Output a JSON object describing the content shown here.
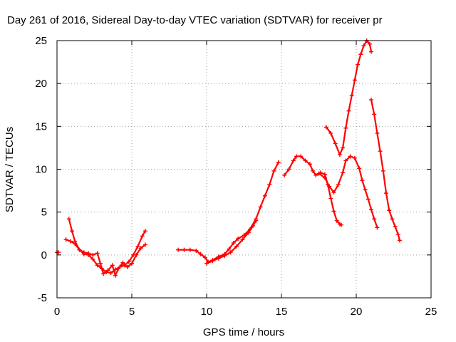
{
  "chart_data": {
    "type": "scatter",
    "title": "Day 261 of 2016, Sidereal Day-to-day VTEC variation (SDTVAR) for receiver pr",
    "xlabel": "GPS time / hours",
    "ylabel": "SDTVAR / TECUs",
    "xlim": [
      0,
      25
    ],
    "ylim": [
      -5,
      25
    ],
    "xticks": [
      0,
      5,
      10,
      15,
      20,
      25
    ],
    "yticks": [
      -5,
      0,
      5,
      10,
      15,
      20,
      25
    ],
    "grid": true,
    "marker": "plus",
    "color": "#ff0000",
    "series": [
      {
        "segments": [
          [
            [
              0.0,
              0.3
            ],
            [
              0.1,
              0.3
            ]
          ],
          [
            [
              0.8,
              4.2
            ],
            [
              1.0,
              2.8
            ],
            [
              1.2,
              1.6
            ],
            [
              1.5,
              0.6
            ],
            [
              1.8,
              0.1
            ],
            [
              2.1,
              0.0
            ],
            [
              2.4,
              -0.5
            ],
            [
              2.7,
              -1.2
            ],
            [
              3.0,
              -1.6
            ],
            [
              3.3,
              -2.0
            ],
            [
              3.6,
              -2.1
            ],
            [
              3.9,
              -1.7
            ],
            [
              4.2,
              -1.4
            ],
            [
              4.5,
              -1.2
            ],
            [
              4.8,
              -0.8
            ],
            [
              5.1,
              0.0
            ],
            [
              5.4,
              1.0
            ],
            [
              5.7,
              2.2
            ],
            [
              5.9,
              2.8
            ]
          ],
          [
            [
              0.6,
              1.8
            ],
            [
              0.9,
              1.6
            ],
            [
              1.2,
              1.3
            ],
            [
              1.5,
              0.6
            ],
            [
              1.8,
              0.3
            ],
            [
              2.1,
              0.2
            ],
            [
              2.4,
              0.0
            ],
            [
              2.7,
              0.2
            ],
            [
              2.9,
              -1.0
            ],
            [
              3.1,
              -2.2
            ],
            [
              3.4,
              -1.8
            ],
            [
              3.7,
              -1.2
            ],
            [
              3.9,
              -2.4
            ],
            [
              4.1,
              -1.6
            ],
            [
              4.4,
              -0.9
            ],
            [
              4.7,
              -1.4
            ],
            [
              5.0,
              -1.0
            ],
            [
              5.3,
              0.0
            ],
            [
              5.6,
              0.8
            ],
            [
              5.9,
              1.2
            ]
          ],
          [
            [
              8.1,
              0.6
            ],
            [
              8.5,
              0.6
            ],
            [
              8.9,
              0.6
            ],
            [
              9.3,
              0.5
            ],
            [
              9.6,
              0.1
            ],
            [
              9.9,
              -0.3
            ],
            [
              10.1,
              -0.8
            ],
            [
              10.4,
              -0.6
            ],
            [
              10.8,
              -0.2
            ],
            [
              11.2,
              0.1
            ],
            [
              11.5,
              0.7
            ],
            [
              11.8,
              1.4
            ],
            [
              12.1,
              1.9
            ],
            [
              12.5,
              2.3
            ],
            [
              12.9,
              3.0
            ],
            [
              13.3,
              4.2
            ],
            [
              13.6,
              5.6
            ],
            [
              13.9,
              6.9
            ],
            [
              14.2,
              8.2
            ],
            [
              14.5,
              9.8
            ],
            [
              14.8,
              10.8
            ]
          ],
          [
            [
              10.0,
              -1.0
            ],
            [
              10.4,
              -0.7
            ],
            [
              10.8,
              -0.4
            ],
            [
              11.2,
              -0.1
            ],
            [
              11.6,
              0.3
            ],
            [
              12.0,
              1.0
            ],
            [
              12.4,
              1.8
            ],
            [
              12.8,
              2.6
            ],
            [
              13.1,
              3.4
            ],
            [
              13.3,
              4.0
            ]
          ],
          [
            [
              15.2,
              9.3
            ],
            [
              15.5,
              10.0
            ],
            [
              15.8,
              11.0
            ],
            [
              16.0,
              11.5
            ],
            [
              16.3,
              11.5
            ],
            [
              16.6,
              11.0
            ],
            [
              16.9,
              10.6
            ],
            [
              17.1,
              9.8
            ],
            [
              17.3,
              9.3
            ],
            [
              17.6,
              9.6
            ],
            [
              17.9,
              9.4
            ],
            [
              18.1,
              8.2
            ],
            [
              18.3,
              6.6
            ],
            [
              18.5,
              5.1
            ],
            [
              18.7,
              4.0
            ],
            [
              18.9,
              3.6
            ],
            [
              19.0,
              3.5
            ]
          ],
          [
            [
              17.5,
              9.5
            ],
            [
              17.9,
              9.0
            ],
            [
              18.2,
              8.0
            ],
            [
              18.5,
              7.3
            ],
            [
              18.8,
              8.2
            ],
            [
              19.1,
              9.6
            ],
            [
              19.3,
              11.0
            ],
            [
              19.6,
              11.5
            ],
            [
              19.9,
              11.3
            ],
            [
              20.2,
              10.1
            ],
            [
              20.4,
              8.7
            ],
            [
              20.6,
              7.6
            ],
            [
              20.8,
              6.5
            ],
            [
              21.0,
              5.3
            ],
            [
              21.2,
              4.2
            ],
            [
              21.4,
              3.2
            ]
          ],
          [
            [
              18.0,
              14.9
            ],
            [
              18.3,
              14.2
            ],
            [
              18.6,
              13.0
            ],
            [
              18.9,
              11.7
            ],
            [
              19.1,
              12.5
            ],
            [
              19.3,
              14.8
            ],
            [
              19.5,
              16.8
            ],
            [
              19.7,
              18.6
            ],
            [
              19.9,
              20.4
            ],
            [
              20.1,
              22.2
            ],
            [
              20.3,
              23.4
            ],
            [
              20.5,
              24.4
            ],
            [
              20.7,
              25.0
            ],
            [
              20.9,
              24.6
            ],
            [
              21.0,
              23.7
            ]
          ],
          [
            [
              21.0,
              18.1
            ],
            [
              21.2,
              16.4
            ],
            [
              21.4,
              14.2
            ],
            [
              21.6,
              12.1
            ],
            [
              21.8,
              9.8
            ],
            [
              22.0,
              7.2
            ],
            [
              22.2,
              5.2
            ],
            [
              22.4,
              4.2
            ],
            [
              22.6,
              3.3
            ],
            [
              22.8,
              2.4
            ],
            [
              22.9,
              1.7
            ]
          ]
        ]
      }
    ]
  }
}
